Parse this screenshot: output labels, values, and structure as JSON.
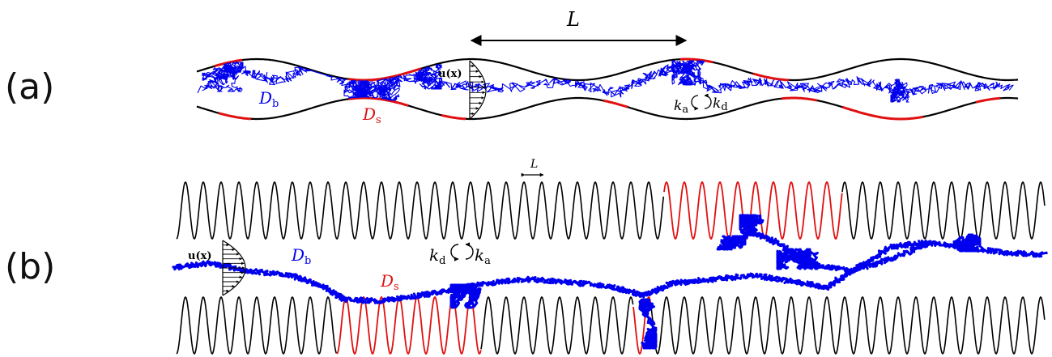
{
  "colors": {
    "wall": "#000000",
    "bulk_trajectory": "#0000ee",
    "surface": "#e01010"
  },
  "panel_a": {
    "label": "(a)",
    "period_symbol": "L",
    "velocity_label": "u(x)",
    "bulk_diffusivity": {
      "symbol": "D",
      "subscript": "b"
    },
    "surface_diffusivity": {
      "symbol": "D",
      "subscript": "s"
    },
    "adsorption_rate": {
      "symbol": "k",
      "subscript": "a"
    },
    "desorption_rate": {
      "symbol": "k",
      "subscript": "d"
    }
  },
  "panel_b": {
    "label": "(b)",
    "period_symbol": "L",
    "velocity_label": "u(x)",
    "bulk_diffusivity": {
      "symbol": "D",
      "subscript": "b"
    },
    "surface_diffusivity": {
      "symbol": "D",
      "subscript": "s"
    },
    "desorption_rate": {
      "symbol": "k",
      "subscript": "d"
    },
    "adsorption_rate": {
      "symbol": "k",
      "subscript": "a"
    }
  }
}
